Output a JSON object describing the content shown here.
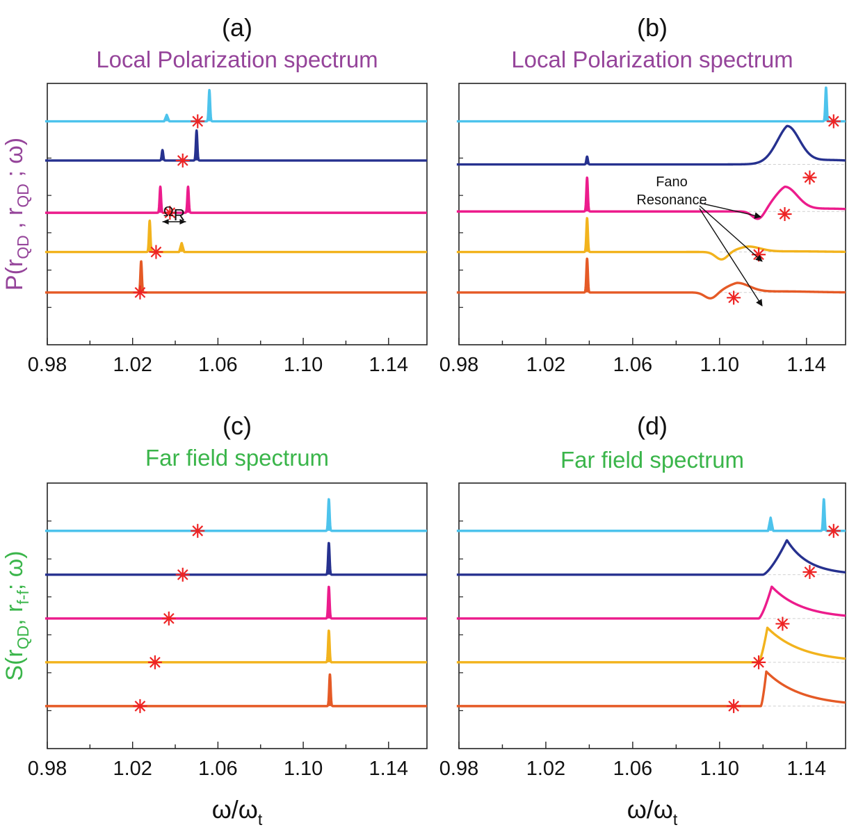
{
  "colors": {
    "cyan": "#4dc3ec",
    "navy": "#26318f",
    "magenta": "#ec1c8c",
    "gold": "#f2b31d",
    "orange": "#e55a26",
    "marker": "#ee2424",
    "purple_text": "#95449a",
    "green_text": "#3ab54a"
  },
  "chart_data": [
    {
      "type": "line",
      "panel": "(a)",
      "title": "Local Polarization spectrum",
      "ylabel": {
        "main": "P(r",
        "sub1": "QD",
        "mid": " , r",
        "sub2": "QD",
        "end": " ; ω)"
      },
      "xlabel": "",
      "xlim": [
        0.98,
        1.158
      ],
      "xticks": [
        "0.98",
        "1.02",
        "1.06",
        "1.10",
        "1.14"
      ],
      "ytick_labels": "none",
      "grid": false,
      "annotation": {
        "text": "Ω",
        "sub": "R",
        "x1": 1.033,
        "x2": 1.046,
        "level": 0.54
      },
      "series": [
        {
          "color": "cyan",
          "base": 0.855,
          "peaks": [
            [
              1.036,
              0.025,
              "tri"
            ],
            [
              1.056,
              0.12,
              "spike"
            ]
          ],
          "marker": [
            1.0505,
            0.855
          ]
        },
        {
          "color": "navy",
          "base": 0.705,
          "peaks": [
            [
              1.034,
              0.04,
              "spike"
            ],
            [
              1.05,
              0.115,
              "spike"
            ]
          ],
          "marker": [
            1.0435,
            0.705
          ]
        },
        {
          "color": "magenta",
          "base": 0.505,
          "peaks": [
            [
              1.033,
              0.1,
              "spike"
            ],
            [
              1.046,
              0.1,
              "spike"
            ]
          ],
          "marker": [
            1.0375,
            0.505
          ]
        },
        {
          "color": "gold",
          "base": 0.355,
          "peaks": [
            [
              1.028,
              0.12,
              "spike"
            ],
            [
              1.043,
              0.035,
              "tri"
            ]
          ],
          "marker": [
            1.031,
            0.355
          ]
        },
        {
          "color": "orange",
          "base": 0.2,
          "peaks": [
            [
              1.024,
              0.12,
              "spike"
            ]
          ],
          "marker": [
            1.0235,
            0.2
          ]
        }
      ]
    },
    {
      "type": "line",
      "panel": "(b)",
      "title": "Local Polarization spectrum",
      "xlabel": "",
      "xlim": [
        0.98,
        1.158
      ],
      "xticks": [
        "0.98",
        "1.02",
        "1.06",
        "1.10",
        "1.14"
      ],
      "ytick_labels": "none",
      "grid": false,
      "annotation": {
        "line1": "Fano",
        "line2": "Resonance"
      },
      "series": [
        {
          "color": "cyan",
          "base": 0.855,
          "peaks": [
            [
              1.149,
              0.13,
              "spike"
            ]
          ],
          "marker": [
            1.1525,
            0.855
          ]
        },
        {
          "color": "navy",
          "base": 0.69,
          "peaks": [
            [
              1.039,
              0.03,
              "spike"
            ]
          ],
          "fano": {
            "center": 1.131,
            "height": 0.14,
            "dip": 0
          },
          "marker": [
            1.1415,
            0.64
          ]
        },
        {
          "color": "magenta",
          "base": 0.51,
          "peaks": [
            [
              1.039,
              0.13,
              "spike"
            ]
          ],
          "fano": {
            "center": 1.13,
            "height": 0.09,
            "dip": 0.035
          },
          "marker": [
            1.13,
            0.5
          ]
        },
        {
          "color": "gold",
          "base": 0.355,
          "peaks": [
            [
              1.039,
              0.13,
              "spike"
            ]
          ],
          "fano": {
            "center": 1.113,
            "height": 0.02,
            "dip": 0.03
          },
          "marker": [
            1.118,
            0.345
          ]
        },
        {
          "color": "orange",
          "base": 0.2,
          "peaks": [
            [
              1.039,
              0.13,
              "spike"
            ]
          ],
          "fano": {
            "center": 1.108,
            "height": 0.035,
            "dip": 0.025
          },
          "marker": [
            1.1065,
            0.18
          ]
        }
      ]
    },
    {
      "type": "line",
      "panel": "(c)",
      "title": "Far field spectrum",
      "ylabel": {
        "main": "S(r",
        "sub1": "QD",
        "mid": ", r",
        "sub2": "f-f",
        "end": "; ω)"
      },
      "xlabel": "ω/ω",
      "xlabel_sub": "t",
      "xlim": [
        0.98,
        1.158
      ],
      "xticks": [
        "0.98",
        "1.02",
        "1.06",
        "1.10",
        "1.14"
      ],
      "ytick_labels": "none",
      "grid": false,
      "series": [
        {
          "color": "cyan",
          "base": 0.82,
          "peaks": [
            [
              1.112,
              0.12,
              "spike"
            ]
          ],
          "marker": [
            1.0505,
            0.82
          ]
        },
        {
          "color": "navy",
          "base": 0.655,
          "peaks": [
            [
              1.112,
              0.12,
              "spike"
            ]
          ],
          "marker": [
            1.0435,
            0.655
          ]
        },
        {
          "color": "magenta",
          "base": 0.49,
          "peaks": [
            [
              1.112,
              0.12,
              "spike"
            ]
          ],
          "marker": [
            1.037,
            0.49
          ]
        },
        {
          "color": "gold",
          "base": 0.325,
          "peaks": [
            [
              1.112,
              0.12,
              "spike"
            ]
          ],
          "marker": [
            1.0305,
            0.325
          ]
        },
        {
          "color": "orange",
          "base": 0.16,
          "peaks": [
            [
              1.1125,
              0.12,
              "spike"
            ]
          ],
          "marker": [
            1.0235,
            0.16
          ]
        }
      ]
    },
    {
      "type": "line",
      "panel": "(d)",
      "title": "Far field spectrum",
      "xlabel": "ω/ω",
      "xlabel_sub": "t",
      "xlim": [
        0.98,
        1.158
      ],
      "xticks": [
        "0.98",
        "1.02",
        "1.06",
        "1.10",
        "1.14"
      ],
      "ytick_labels": "none",
      "grid": false,
      "series": [
        {
          "color": "cyan",
          "base": 0.82,
          "peaks": [
            [
              1.1235,
              0.05,
              "tri"
            ],
            [
              1.148,
              0.12,
              "spike"
            ]
          ],
          "marker": [
            1.1525,
            0.82
          ]
        },
        {
          "color": "navy",
          "base": 0.655,
          "rise": {
            "start": 1.12,
            "peak": 1.131,
            "height": 0.13,
            "decay": 0.01
          },
          "marker": [
            1.1415,
            0.665
          ]
        },
        {
          "color": "magenta",
          "base": 0.49,
          "rise": {
            "start": 1.118,
            "peak": 1.124,
            "height": 0.12,
            "decay": 0.014
          },
          "marker": [
            1.129,
            0.47
          ]
        },
        {
          "color": "gold",
          "base": 0.325,
          "rise": {
            "start": 1.118,
            "peak": 1.122,
            "height": 0.13,
            "decay": 0.016
          },
          "marker": [
            1.118,
            0.325
          ]
        },
        {
          "color": "orange",
          "base": 0.16,
          "rise": {
            "start": 1.119,
            "peak": 1.1215,
            "height": 0.13,
            "decay": 0.016
          },
          "marker": [
            1.1065,
            0.16
          ]
        }
      ]
    }
  ]
}
